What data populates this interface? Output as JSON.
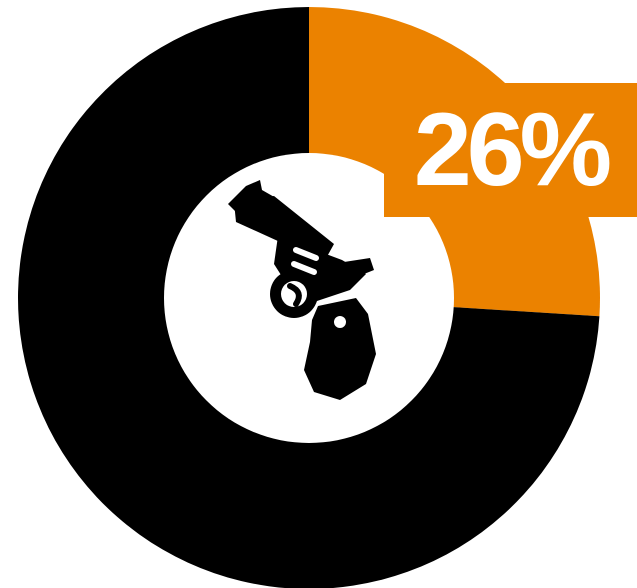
{
  "chart_data": {
    "type": "pie",
    "donut": true,
    "slices": [
      {
        "value": 26,
        "color": "#EB8200"
      },
      {
        "value": 74,
        "color": "#000000"
      }
    ],
    "label": "26%",
    "center_icon": "revolver-icon"
  },
  "colors": {
    "accent": "#EB8200",
    "base": "#000000",
    "background": "#FFFFFF"
  }
}
